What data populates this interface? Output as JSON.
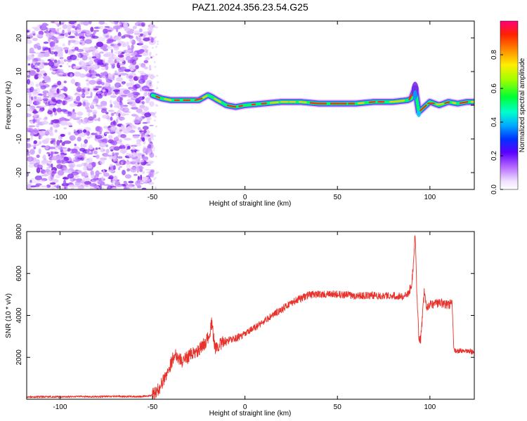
{
  "title": "PAZ1.2024.356.23.54.G25",
  "chart_data": [
    {
      "type": "heatmap",
      "xlabel": "Height of straight line (km)",
      "ylabel": "Frequency (Hz)",
      "xlim": [
        -118,
        124
      ],
      "ylim": [
        -25,
        25
      ],
      "xticks": [
        -100,
        -50,
        0,
        50,
        100
      ],
      "yticks": [
        -20,
        -10,
        0,
        10,
        20
      ],
      "colorbar": {
        "label": "Normalized spectral amplitude",
        "range": [
          0,
          1
        ],
        "ticks": [
          "0.0",
          "0.2",
          "0.4",
          "0.6",
          "0.8"
        ],
        "tick_values": [
          0,
          0.2,
          0.4,
          0.6,
          0.8
        ]
      },
      "noise_region_x": [
        -118,
        -50
      ],
      "ridge": {
        "x": [
          -50,
          -45,
          -40,
          -35,
          -30,
          -25,
          -20,
          -18,
          -15,
          -10,
          -5,
          0,
          10,
          20,
          30,
          40,
          50,
          60,
          70,
          80,
          88,
          90,
          92,
          94,
          96,
          100,
          105,
          110,
          115,
          120,
          124
        ],
        "y": [
          3,
          2,
          1.5,
          1.5,
          1.5,
          1.5,
          3,
          2.5,
          1.5,
          0,
          -0.5,
          0,
          0.5,
          1,
          1,
          0.5,
          0.5,
          0.5,
          1,
          1,
          1.5,
          2,
          5,
          -2,
          -1,
          1,
          0,
          1,
          0.5,
          1,
          1
        ]
      }
    },
    {
      "type": "line",
      "xlabel": "Height of straight line (km)",
      "ylabel": "SNR (10 * v/v)",
      "xlim": [
        -118,
        124
      ],
      "ylim": [
        0,
        8000
      ],
      "xticks": [
        -100,
        -50,
        0,
        50,
        100
      ],
      "yticks": [
        2000,
        4000,
        6000,
        8000
      ],
      "color": "#e8312a",
      "series": [
        {
          "x": [
            -118,
            -110,
            -100,
            -90,
            -80,
            -70,
            -60,
            -52,
            -48,
            -46,
            -44,
            -42,
            -40,
            -38,
            -36,
            -34,
            -30,
            -25,
            -20,
            -18,
            -16,
            -14,
            -10,
            -5,
            0,
            5,
            10,
            15,
            20,
            25,
            30,
            35,
            40,
            50,
            60,
            70,
            80,
            85,
            88,
            90,
            91,
            92,
            93,
            94,
            95,
            96,
            97,
            98,
            100,
            105,
            110,
            112,
            113,
            115,
            120,
            124
          ],
          "y": [
            100,
            120,
            110,
            130,
            120,
            140,
            130,
            150,
            300,
            600,
            900,
            1300,
            1700,
            2200,
            2000,
            1800,
            2100,
            2300,
            2900,
            3600,
            2400,
            2600,
            2800,
            2900,
            3100,
            3400,
            3700,
            4000,
            4300,
            4600,
            4800,
            5000,
            5000,
            5000,
            4950,
            4950,
            4950,
            4900,
            5000,
            5400,
            6300,
            7900,
            5000,
            3000,
            2800,
            4000,
            5200,
            4400,
            4500,
            4600,
            4500,
            4600,
            2300,
            2300,
            2300,
            2250
          ]
        }
      ]
    }
  ]
}
